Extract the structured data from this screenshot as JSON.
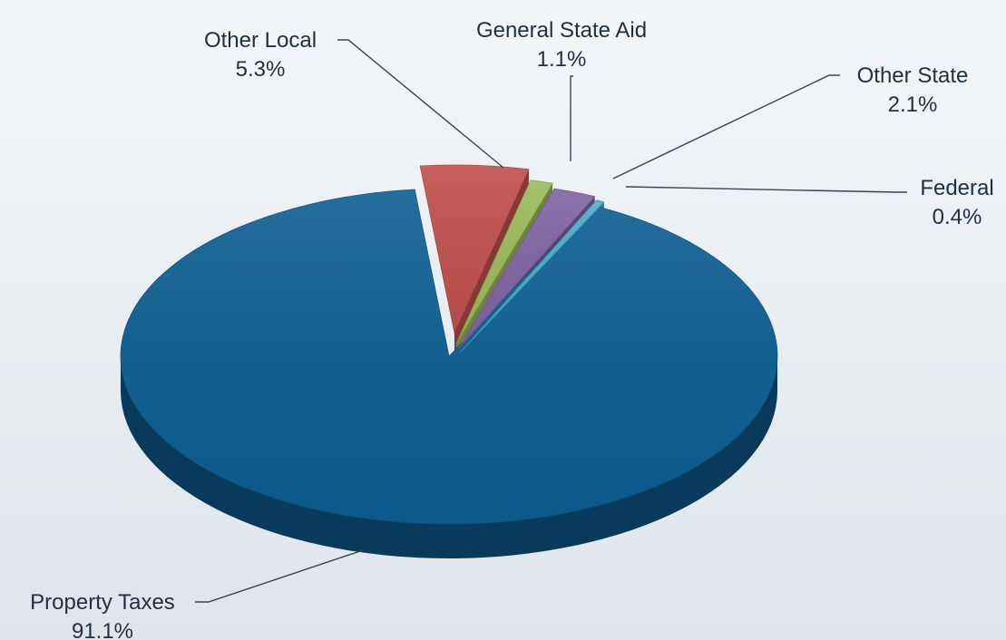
{
  "chart_data": {
    "type": "pie",
    "style": "3d-exploded",
    "slices": [
      {
        "name": "Property Taxes",
        "value": 91.1,
        "value_label": "91.1%",
        "color": "#0b5e92"
      },
      {
        "name": "Other Local",
        "value": 5.3,
        "value_label": "5.3%",
        "color": "#c0504d"
      },
      {
        "name": "General State Aid",
        "value": 1.1,
        "value_label": "1.1%",
        "color": "#9bbb59"
      },
      {
        "name": "Other State",
        "value": 2.1,
        "value_label": "2.1%",
        "color": "#8064a2"
      },
      {
        "name": "Federal",
        "value": 0.4,
        "value_label": "0.4%",
        "color": "#4bacc6"
      }
    ]
  }
}
